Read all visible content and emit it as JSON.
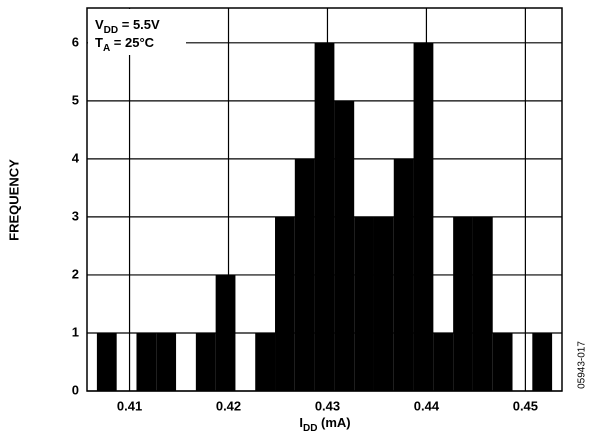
{
  "chart_data": {
    "type": "histogram",
    "annotations": [
      {
        "symbol": "V",
        "subscript": "DD",
        "text": " = 5.5V"
      },
      {
        "symbol": "T",
        "subscript": "A",
        "text": " = 25°C"
      }
    ],
    "x_label": {
      "symbol": "I",
      "subscript": "DD",
      "text": " (mA)"
    },
    "y_label": "FREQUENCY",
    "figure_code": "05943-017",
    "bins": [
      0.4067,
      0.4087,
      0.4107,
      0.4127,
      0.4147,
      0.4167,
      0.4187,
      0.4207,
      0.4227,
      0.4247,
      0.4267,
      0.4287,
      0.4307,
      0.4327,
      0.4347,
      0.4367,
      0.4387,
      0.4407,
      0.4427,
      0.4447,
      0.4467,
      0.4487,
      0.4507,
      0.4527
    ],
    "counts": [
      1,
      0,
      1,
      1,
      0,
      1,
      2,
      0,
      1,
      3,
      4,
      6,
      5,
      3,
      3,
      4,
      6,
      1,
      3,
      3,
      1,
      0,
      1
    ],
    "color": "#000000",
    "xlim": [
      0.4057,
      0.4537
    ],
    "ylim": [
      0,
      6.6
    ],
    "xticks": [
      0.41,
      0.42,
      0.43,
      0.44,
      0.45
    ],
    "yticks": [
      0,
      1,
      2,
      3,
      4,
      5,
      6
    ],
    "grid": true
  }
}
